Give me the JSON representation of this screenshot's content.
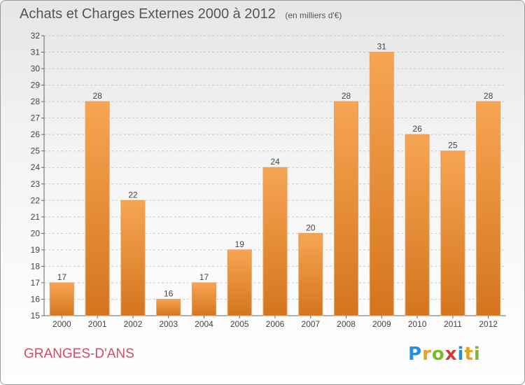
{
  "header": {
    "title": "Achats et Charges Externes 2000 à 2012",
    "unit": "(en milliers d'€)"
  },
  "footer": {
    "commune": "GRANGES-D'ANS",
    "logo_letters": [
      "P",
      "r",
      "o",
      "x",
      "i",
      "t",
      "i"
    ],
    "logo_colors": [
      "#2a8fd6",
      "#e8a020",
      "#7cba2a",
      "#d43a3a",
      "#2a8fd6",
      "#e8a020",
      "#7cba2a"
    ]
  },
  "chart_data": {
    "type": "bar",
    "title": "Achats et Charges Externes 2000 à 2012",
    "subtitle": "(en milliers d'€)",
    "categories": [
      "2000",
      "2001",
      "2002",
      "2003",
      "2004",
      "2005",
      "2006",
      "2007",
      "2008",
      "2009",
      "2010",
      "2011",
      "2012"
    ],
    "values": [
      17,
      28,
      22,
      16,
      17,
      19,
      24,
      20,
      28,
      31,
      26,
      25,
      28
    ],
    "ylim": [
      15,
      32
    ],
    "yticks": [
      15,
      16,
      17,
      18,
      19,
      20,
      21,
      22,
      23,
      24,
      25,
      26,
      27,
      28,
      29,
      30,
      31,
      32
    ],
    "grid": true,
    "bar_color_top": "#f7a553",
    "bar_color_bottom": "#d4751e",
    "xlabel": "",
    "ylabel": ""
  }
}
